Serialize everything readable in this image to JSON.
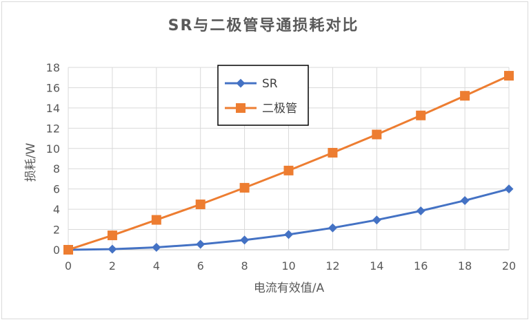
{
  "chart_data": {
    "type": "line",
    "title": "SR与二极管导通损耗对比",
    "xlabel": "电流有效值/A",
    "ylabel": "损耗/W",
    "x": [
      0,
      2,
      4,
      6,
      8,
      10,
      12,
      14,
      16,
      18,
      20
    ],
    "xlim": [
      0,
      20
    ],
    "ylim": [
      0,
      18
    ],
    "xticks": [
      "0",
      "2",
      "4",
      "6",
      "8",
      "10",
      "12",
      "14",
      "16",
      "18",
      "20"
    ],
    "yticks": [
      "0",
      "2",
      "4",
      "6",
      "8",
      "10",
      "12",
      "14",
      "16",
      "18"
    ],
    "grid": true,
    "legend_position": "top-center",
    "series": [
      {
        "name": "SR",
        "color": "#4472c4",
        "marker": "diamond",
        "values": [
          0,
          0.06,
          0.24,
          0.54,
          0.96,
          1.5,
          2.16,
          2.94,
          3.84,
          4.86,
          6.0
        ]
      },
      {
        "name": "二极管",
        "color": "#ed7d31",
        "marker": "square",
        "values": [
          0,
          1.42,
          2.95,
          4.48,
          6.12,
          7.82,
          9.58,
          11.38,
          13.26,
          15.2,
          17.18
        ]
      }
    ]
  }
}
